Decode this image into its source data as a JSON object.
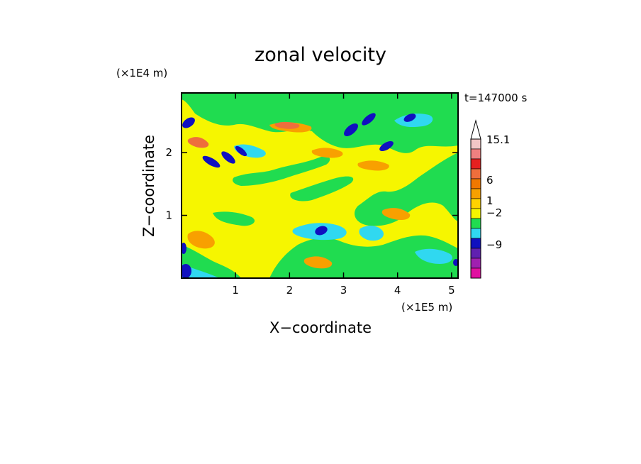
{
  "chart_data": {
    "type": "heatmap",
    "title": "zonal velocity",
    "xlabel": "X−coordinate",
    "ylabel": "Z−coordinate",
    "x_multiplier": "(×1E5 m)",
    "y_multiplier": "(×1E4 m)",
    "time_label": "t=147000 s",
    "xlim": [
      0,
      5.12
    ],
    "ylim": [
      0,
      2.95
    ],
    "x_ticks": [
      1,
      2,
      3,
      4,
      5
    ],
    "y_ticks": [
      1,
      2
    ],
    "grid": false,
    "legend_position": "right",
    "colorbar": {
      "levels": [
        {
          "color": "#f2c6c6"
        },
        {
          "color": "#f08080"
        },
        {
          "color": "#e62020"
        },
        {
          "color": "#ee6e3c"
        },
        {
          "color": "#f07800"
        },
        {
          "color": "#f8a000"
        },
        {
          "color": "#ffd200"
        },
        {
          "color": "#f6f600"
        },
        {
          "color": "#20dc50"
        },
        {
          "color": "#30d8f0"
        },
        {
          "color": "#1010c0"
        },
        {
          "color": "#6020b0"
        },
        {
          "color": "#a020b0"
        },
        {
          "color": "#e010a0"
        }
      ],
      "labels": [
        {
          "text": "15.1",
          "value": 15.1
        },
        {
          "text": "6",
          "value": 6
        },
        {
          "text": "1",
          "value": 1
        },
        {
          "text": "−2",
          "value": -2
        },
        {
          "text": "−9",
          "value": -9
        }
      ]
    }
  }
}
